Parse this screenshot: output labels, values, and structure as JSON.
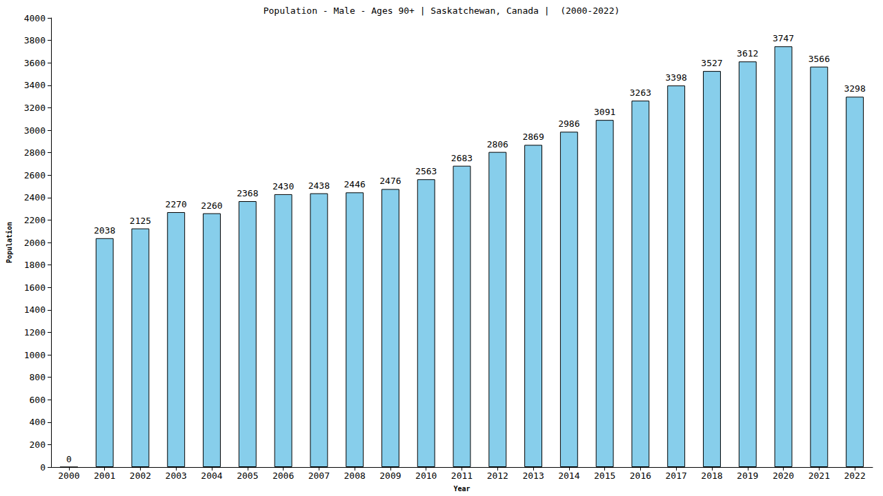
{
  "chart_data": {
    "type": "bar",
    "title": "Population - Male - Ages 90+ | Saskatchewan, Canada |  (2000-2022)",
    "x_label": "Year",
    "y_label": "Population",
    "categories": [
      "2000",
      "2001",
      "2002",
      "2003",
      "2004",
      "2005",
      "2006",
      "2007",
      "2008",
      "2009",
      "2010",
      "2011",
      "2012",
      "2013",
      "2014",
      "2015",
      "2016",
      "2017",
      "2018",
      "2019",
      "2020",
      "2021",
      "2022"
    ],
    "values": [
      0,
      2038,
      2125,
      2270,
      2260,
      2368,
      2430,
      2438,
      2446,
      2476,
      2563,
      2683,
      2806,
      2869,
      2986,
      3091,
      3263,
      3398,
      3527,
      3612,
      3747,
      3566,
      3298
    ],
    "color": "#87ceeb",
    "ylim": [
      0,
      4000
    ],
    "yticks": [
      0,
      200,
      400,
      600,
      800,
      1000,
      1200,
      1400,
      1600,
      1800,
      2000,
      2200,
      2400,
      2600,
      2800,
      3000,
      3200,
      3400,
      3600,
      3800,
      4000
    ],
    "grid": false,
    "data_labels": true
  }
}
